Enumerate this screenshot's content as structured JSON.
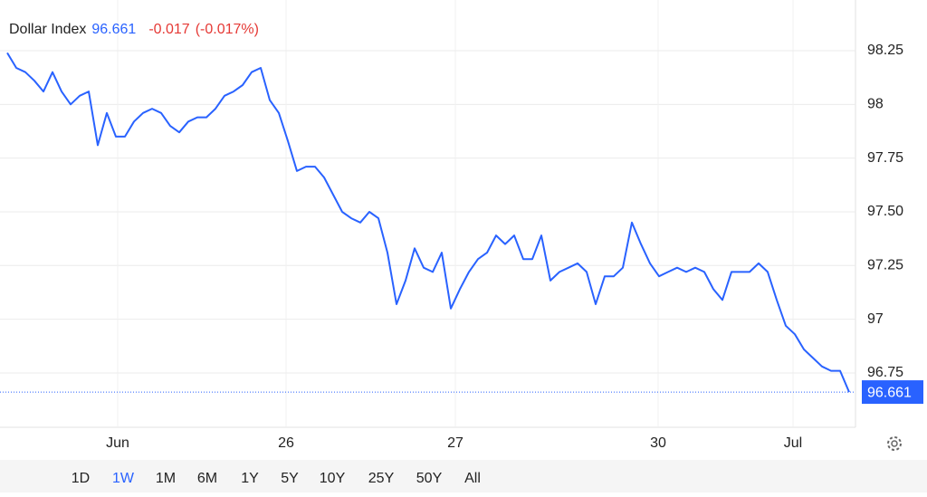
{
  "chart_data": {
    "type": "line",
    "title": "Dollar Index",
    "change": "-0.017",
    "change_percent": "(-0.017%)",
    "x": [
      0,
      1,
      2,
      3,
      4,
      5,
      6,
      7,
      8,
      9,
      10,
      11,
      12,
      13,
      14,
      15,
      16,
      17,
      18,
      19,
      20,
      21,
      22,
      23,
      24,
      25,
      26,
      27,
      28,
      29,
      30,
      31,
      32,
      33,
      34,
      35,
      36,
      37,
      38,
      39,
      40,
      41,
      42,
      43,
      44,
      45,
      46,
      47,
      48,
      49,
      50,
      51,
      52,
      53,
      54,
      55,
      56,
      57,
      58,
      59,
      60,
      61,
      62,
      63,
      64,
      65,
      66,
      67,
      68,
      69,
      70,
      71,
      72,
      73,
      74,
      75,
      76,
      77,
      78,
      79,
      80,
      81,
      82,
      83,
      84,
      85,
      86,
      87,
      88,
      89,
      90,
      91,
      92,
      93
    ],
    "series": [
      {
        "name": "Dollar Index",
        "color": "#2962ff",
        "values": [
          98.24,
          98.17,
          98.15,
          98.11,
          98.06,
          98.15,
          98.06,
          98.0,
          98.04,
          98.06,
          97.81,
          97.96,
          97.85,
          97.85,
          97.92,
          97.96,
          97.98,
          97.96,
          97.9,
          97.87,
          97.92,
          97.94,
          97.94,
          97.98,
          98.04,
          98.06,
          98.09,
          98.15,
          98.17,
          98.02,
          97.96,
          97.83,
          97.69,
          97.71,
          97.71,
          97.66,
          97.58,
          97.5,
          97.47,
          97.45,
          97.5,
          97.47,
          97.31,
          97.07,
          97.18,
          97.33,
          97.24,
          97.22,
          97.31,
          97.05,
          97.14,
          97.22,
          97.28,
          97.31,
          97.39,
          97.35,
          97.39,
          97.28,
          97.28,
          97.39,
          97.18,
          97.22,
          97.24,
          97.26,
          97.22,
          97.07,
          97.2,
          97.2,
          97.24,
          97.45,
          97.35,
          97.26,
          97.2,
          97.22,
          97.24,
          97.22,
          97.24,
          97.22,
          97.14,
          97.09,
          97.22,
          97.22,
          97.22,
          97.26,
          97.22,
          97.09,
          96.97,
          96.93,
          96.86,
          96.82,
          96.78,
          96.76,
          96.76,
          96.661
        ]
      }
    ],
    "xlim": [
      -0.8,
      93.7
    ],
    "xticks": [
      {
        "value": 12.2,
        "label": "Jun"
      },
      {
        "value": 30.8,
        "label": "26"
      },
      {
        "value": 49.5,
        "label": "27"
      },
      {
        "value": 71.9,
        "label": "30"
      },
      {
        "value": 86.8,
        "label": "Jul"
      }
    ],
    "ylim": [
      96.497,
      98.486
    ],
    "yticks": [
      98.25,
      98,
      97.75,
      {
        "value": 97.5,
        "label": "97.50"
      },
      97.25,
      97,
      96.75
    ],
    "grid": true,
    "ranges": [
      "1D",
      "1W",
      "1M",
      "6M",
      "1Y",
      "5Y",
      "10Y",
      "25Y",
      "50Y",
      "All"
    ],
    "active_range": "1W"
  }
}
